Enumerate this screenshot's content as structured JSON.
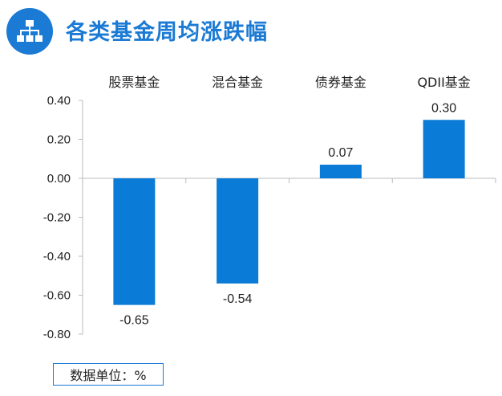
{
  "header": {
    "title": "各类基金周均涨跌幅",
    "icon": "org-chart-icon"
  },
  "colors": {
    "accent": "#1a7ad4",
    "bar": "#0a7bd6"
  },
  "unit_note": "数据单位：%",
  "chart_data": {
    "type": "bar",
    "categories": [
      "股票基金",
      "混合基金",
      "债券基金",
      "QDII基金"
    ],
    "values": [
      -0.65,
      -0.54,
      0.07,
      0.3
    ],
    "value_labels": [
      "-0.65",
      "-0.54",
      "0.07",
      "0.30"
    ],
    "y_ticks": [
      "0.40",
      "0.20",
      "0.00",
      "-0.20",
      "-0.40",
      "-0.60",
      "-0.80"
    ],
    "ylim": [
      -0.8,
      0.4
    ],
    "grid": false,
    "legend": "none"
  }
}
